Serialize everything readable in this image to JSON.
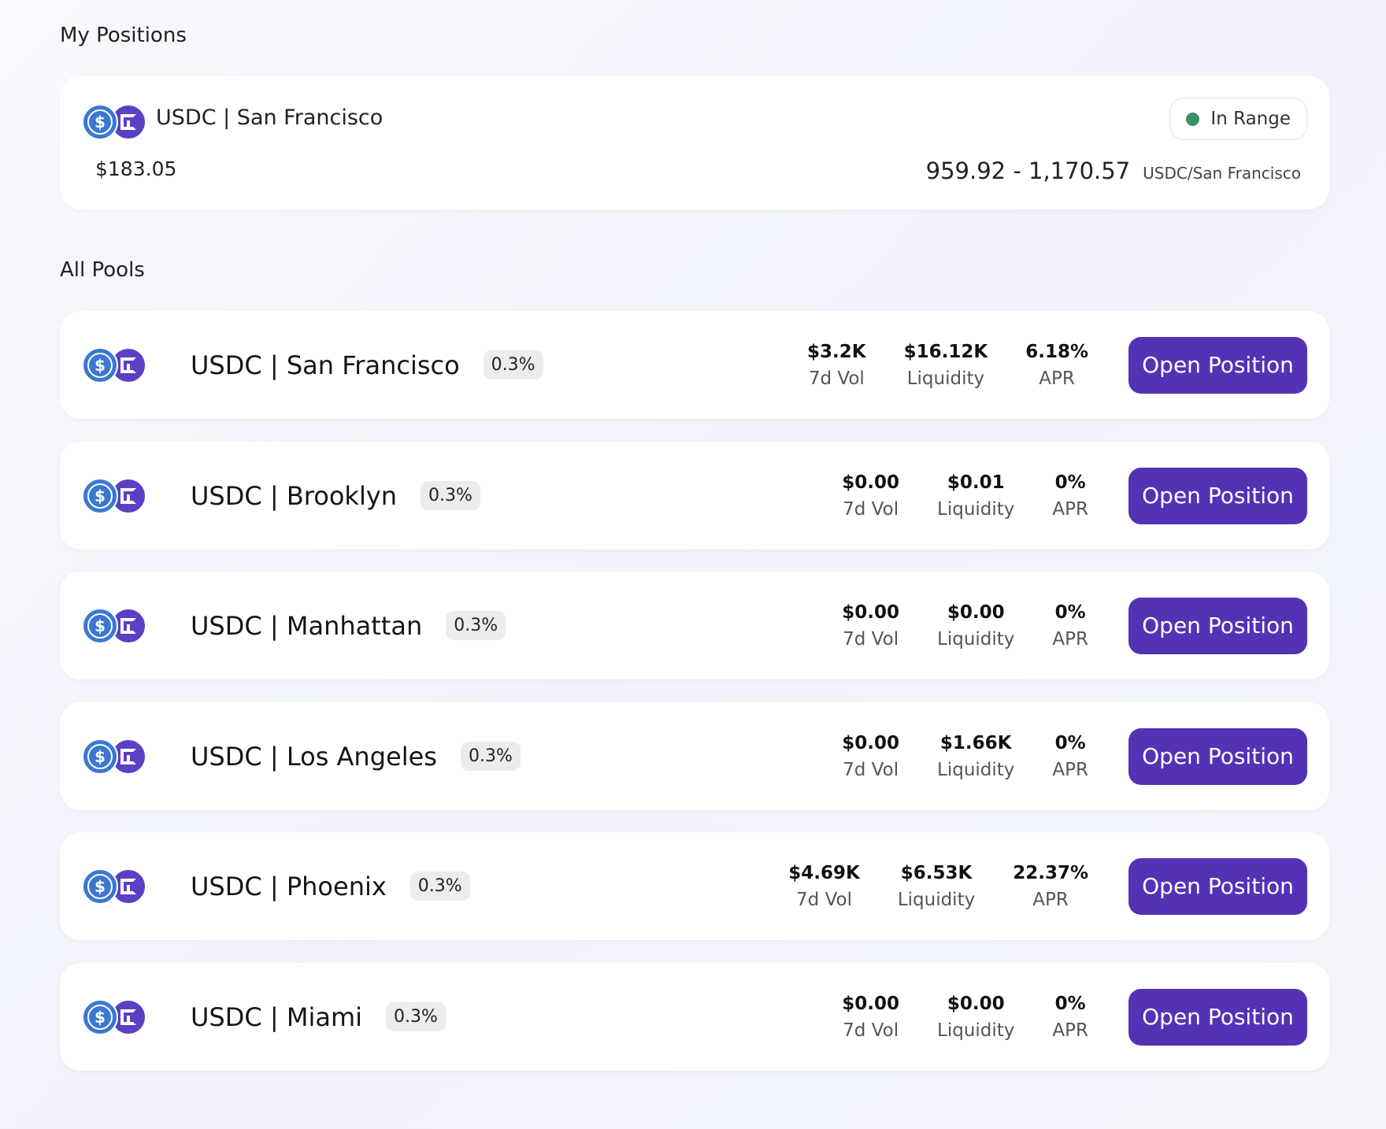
{
  "my_positions": {
    "title": "My Positions",
    "position": {
      "pair": "USDC | San Francisco",
      "value": "$183.05",
      "status": "In Range",
      "status_color": "#3a8f64",
      "range": "959.92 - 1,170.57",
      "range_unit": "USDC/San Francisco"
    }
  },
  "all_pools": {
    "title": "All Pools",
    "button_label": "Open Position",
    "stat_labels": {
      "vol": "7d Vol",
      "liq": "Liquidity",
      "apr": "APR"
    },
    "pools": [
      {
        "name": "USDC | San Francisco",
        "fee": "0.3%",
        "vol": "$3.2K",
        "liq": "$16.12K",
        "apr": "6.18%"
      },
      {
        "name": "USDC | Brooklyn",
        "fee": "0.3%",
        "vol": "$0.00",
        "liq": "$0.01",
        "apr": "0%"
      },
      {
        "name": "USDC | Manhattan",
        "fee": "0.3%",
        "vol": "$0.00",
        "liq": "$0.00",
        "apr": "0%"
      },
      {
        "name": "USDC | Los Angeles",
        "fee": "0.3%",
        "vol": "$0.00",
        "liq": "$1.66K",
        "apr": "0%"
      },
      {
        "name": "USDC | Phoenix",
        "fee": "0.3%",
        "vol": "$4.69K",
        "liq": "$6.53K",
        "apr": "22.37%"
      },
      {
        "name": "USDC | Miami",
        "fee": "0.3%",
        "vol": "$0.00",
        "liq": "$0.00",
        "apr": "0%"
      }
    ]
  },
  "colors": {
    "accent": "#5432b6",
    "usdc": "#3a78d1",
    "city_token": "#5b3fc4"
  },
  "icons": {
    "usdc": "usdc-coin-icon",
    "city": "city-token-icon"
  }
}
